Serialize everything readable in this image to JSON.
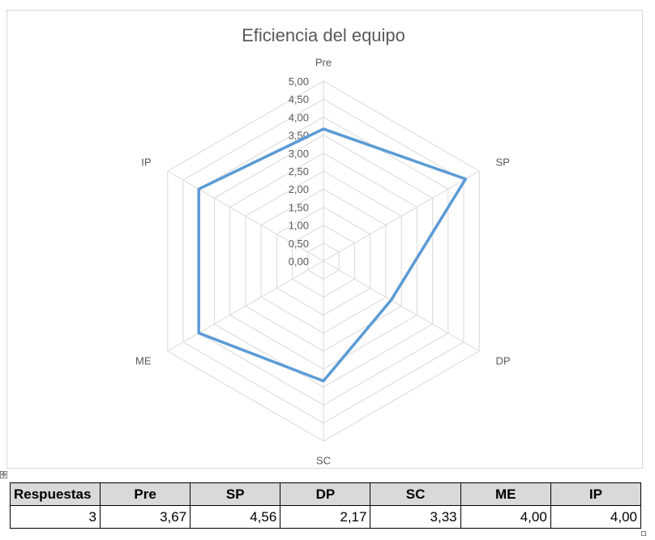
{
  "chart_data": {
    "type": "radar",
    "title": "Eficiencia del equipo",
    "categories": [
      "Pre",
      "SP",
      "DP",
      "SC",
      "ME",
      "IP"
    ],
    "series": [
      {
        "values": [
          3.67,
          4.56,
          2.17,
          3.33,
          4.0,
          4.0
        ],
        "color": "#5b9bd5"
      }
    ],
    "rlim": [
      0,
      5
    ],
    "tick_step": 0.5,
    "tick_labels": [
      "0,00",
      "0,50",
      "1,00",
      "1,50",
      "2,00",
      "2,50",
      "3,00",
      "3,50",
      "4,00",
      "4,50",
      "5,00"
    ],
    "grid": true,
    "gridline_color": "#d9d9d9",
    "legend": false
  },
  "table": {
    "headers": [
      "Respuestas",
      "Pre",
      "SP",
      "DP",
      "SC",
      "ME",
      "IP"
    ],
    "rows": [
      [
        "3",
        "3,67",
        "4,56",
        "2,17",
        "3,33",
        "4,00",
        "4,00"
      ]
    ]
  },
  "icons": {
    "move_handle": "move-icon",
    "resize_handle": "resize-icon"
  },
  "move_glyph": "✥"
}
